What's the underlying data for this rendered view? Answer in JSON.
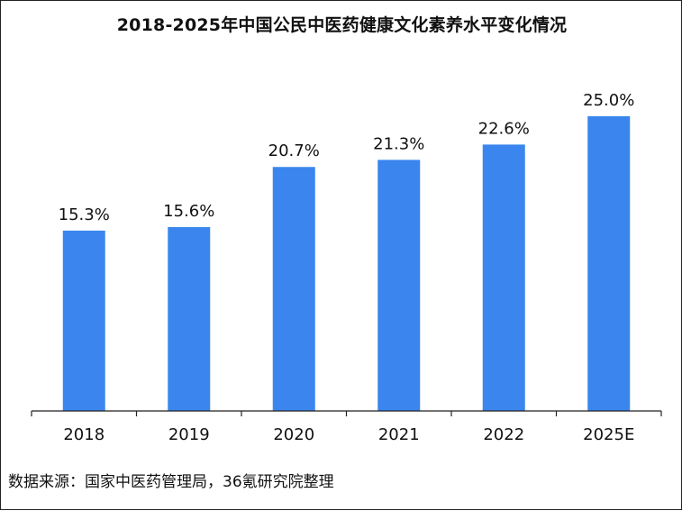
{
  "chart_data": {
    "type": "bar",
    "title": "2018-2025年中国公民中医药健康文化素养水平变化情况",
    "categories": [
      "2018",
      "2019",
      "2020",
      "2021",
      "2022",
      "2025E"
    ],
    "values": [
      15.3,
      15.6,
      20.7,
      21.3,
      22.6,
      25.0
    ],
    "value_labels": [
      "15.3%",
      "15.6%",
      "20.7%",
      "21.3%",
      "22.6%",
      "25.0%"
    ],
    "unit": "%",
    "ylim": [
      0,
      27
    ],
    "bar_color": "#3a86ee",
    "grid": false,
    "legend": "none",
    "source": "数据来源：国家中医药管理局，36氪研究院整理"
  }
}
